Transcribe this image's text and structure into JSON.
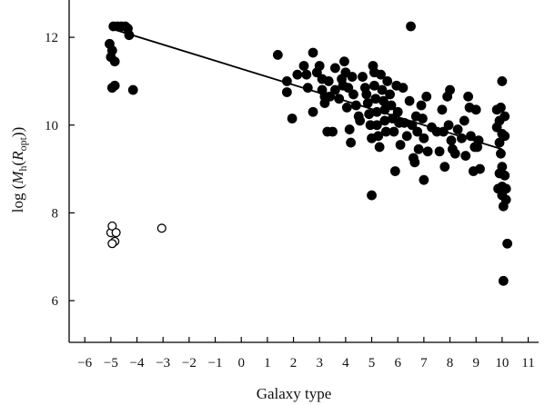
{
  "chart_data": {
    "type": "scatter",
    "title": "",
    "xlabel": "Galaxy type",
    "ylabel": {
      "prefix": "log (",
      "symbol": "M",
      "sub": "h",
      "open": "(",
      "symbol2": "R",
      "sub2": "opt",
      "close": "))"
    },
    "xlim": [
      -6.6,
      11.4
    ],
    "ylim": [
      5.05,
      12.85
    ],
    "xticks": [
      -6,
      -5,
      -4,
      -3,
      -2,
      -1,
      0,
      1,
      2,
      3,
      4,
      5,
      6,
      7,
      8,
      9,
      10,
      11
    ],
    "xtick_labels": [
      "−6",
      "−5",
      "−4",
      "−3",
      "−2",
      "−1",
      "0",
      "1",
      "2",
      "3",
      "4",
      "5",
      "6",
      "7",
      "8",
      "9",
      "10",
      "11"
    ],
    "yticks": [
      6,
      8,
      10,
      12
    ],
    "ytick_labels": [
      "6",
      "8",
      "10",
      "12"
    ],
    "grid": false,
    "series": [
      {
        "marker": "filled-circle",
        "color": "#000000",
        "points": [
          [
            -4.9,
            12.25
          ],
          [
            -4.75,
            12.25
          ],
          [
            -4.6,
            12.25
          ],
          [
            -4.45,
            12.25
          ],
          [
            -4.35,
            12.2
          ],
          [
            -4.3,
            12.05
          ],
          [
            -5.05,
            11.85
          ],
          [
            -4.95,
            11.7
          ],
          [
            -5.0,
            11.55
          ],
          [
            -4.85,
            11.45
          ],
          [
            -4.95,
            10.85
          ],
          [
            -4.85,
            10.9
          ],
          [
            -4.15,
            10.8
          ],
          [
            1.4,
            11.6
          ],
          [
            1.75,
            11.0
          ],
          [
            1.75,
            10.75
          ],
          [
            1.95,
            10.15
          ],
          [
            2.15,
            11.15
          ],
          [
            2.4,
            11.35
          ],
          [
            2.5,
            11.15
          ],
          [
            2.55,
            10.85
          ],
          [
            2.75,
            11.65
          ],
          [
            2.75,
            10.3
          ],
          [
            2.9,
            11.2
          ],
          [
            3.0,
            11.35
          ],
          [
            3.1,
            11.05
          ],
          [
            3.1,
            10.8
          ],
          [
            3.2,
            10.65
          ],
          [
            3.2,
            10.5
          ],
          [
            3.3,
            9.85
          ],
          [
            3.35,
            11.0
          ],
          [
            3.4,
            10.65
          ],
          [
            3.5,
            9.85
          ],
          [
            3.6,
            11.3
          ],
          [
            3.6,
            10.8
          ],
          [
            3.75,
            10.6
          ],
          [
            3.85,
            11.05
          ],
          [
            3.9,
            10.9
          ],
          [
            3.95,
            11.45
          ],
          [
            4.0,
            11.2
          ],
          [
            4.05,
            10.4
          ],
          [
            4.1,
            10.85
          ],
          [
            4.15,
            9.9
          ],
          [
            4.2,
            9.6
          ],
          [
            4.25,
            11.1
          ],
          [
            4.3,
            10.7
          ],
          [
            4.4,
            10.45
          ],
          [
            4.5,
            10.2
          ],
          [
            4.55,
            10.1
          ],
          [
            4.65,
            11.1
          ],
          [
            4.75,
            10.85
          ],
          [
            4.8,
            10.7
          ],
          [
            4.85,
            10.5
          ],
          [
            4.9,
            10.25
          ],
          [
            4.95,
            10.0
          ],
          [
            5.0,
            9.7
          ],
          [
            5.0,
            8.4
          ],
          [
            5.05,
            11.35
          ],
          [
            5.1,
            11.2
          ],
          [
            5.1,
            10.9
          ],
          [
            5.15,
            10.6
          ],
          [
            5.2,
            10.3
          ],
          [
            5.2,
            10.0
          ],
          [
            5.25,
            9.75
          ],
          [
            5.3,
            9.5
          ],
          [
            5.35,
            11.15
          ],
          [
            5.4,
            10.8
          ],
          [
            5.45,
            10.55
          ],
          [
            5.5,
            10.35
          ],
          [
            5.5,
            10.1
          ],
          [
            5.55,
            9.85
          ],
          [
            5.6,
            11.0
          ],
          [
            5.7,
            10.7
          ],
          [
            5.75,
            10.45
          ],
          [
            5.8,
            10.15
          ],
          [
            5.85,
            9.85
          ],
          [
            5.9,
            8.95
          ],
          [
            5.95,
            10.9
          ],
          [
            6.0,
            10.3
          ],
          [
            6.05,
            10.05
          ],
          [
            6.1,
            9.55
          ],
          [
            6.2,
            10.85
          ],
          [
            6.25,
            10.05
          ],
          [
            6.35,
            9.75
          ],
          [
            6.45,
            10.55
          ],
          [
            6.5,
            12.25
          ],
          [
            6.55,
            10.0
          ],
          [
            6.6,
            9.25
          ],
          [
            6.65,
            9.15
          ],
          [
            6.7,
            10.2
          ],
          [
            6.75,
            9.85
          ],
          [
            6.8,
            9.45
          ],
          [
            6.9,
            10.45
          ],
          [
            6.95,
            10.15
          ],
          [
            7.0,
            9.7
          ],
          [
            7.0,
            8.75
          ],
          [
            7.1,
            10.65
          ],
          [
            7.15,
            9.4
          ],
          [
            7.3,
            9.95
          ],
          [
            7.5,
            9.85
          ],
          [
            7.6,
            9.4
          ],
          [
            7.7,
            10.35
          ],
          [
            7.75,
            9.85
          ],
          [
            7.8,
            9.05
          ],
          [
            7.9,
            10.65
          ],
          [
            7.95,
            10.0
          ],
          [
            8.0,
            10.8
          ],
          [
            8.05,
            9.65
          ],
          [
            8.1,
            9.45
          ],
          [
            8.2,
            9.35
          ],
          [
            8.3,
            9.9
          ],
          [
            8.45,
            9.7
          ],
          [
            8.55,
            10.1
          ],
          [
            8.6,
            9.3
          ],
          [
            8.7,
            10.65
          ],
          [
            8.75,
            10.4
          ],
          [
            8.8,
            9.75
          ],
          [
            8.9,
            8.95
          ],
          [
            8.95,
            9.5
          ],
          [
            9.0,
            10.35
          ],
          [
            9.05,
            9.5
          ],
          [
            9.1,
            9.65
          ],
          [
            9.15,
            9.0
          ],
          [
            9.8,
            10.35
          ],
          [
            9.8,
            9.95
          ],
          [
            9.85,
            8.55
          ],
          [
            9.9,
            10.1
          ],
          [
            9.9,
            9.6
          ],
          [
            9.9,
            8.9
          ],
          [
            9.95,
            10.4
          ],
          [
            9.95,
            9.35
          ],
          [
            10.0,
            11.0
          ],
          [
            10.0,
            9.8
          ],
          [
            10.0,
            9.05
          ],
          [
            10.0,
            8.6
          ],
          [
            10.0,
            8.4
          ],
          [
            10.05,
            8.15
          ],
          [
            10.05,
            6.45
          ],
          [
            10.1,
            10.2
          ],
          [
            10.1,
            9.75
          ],
          [
            10.1,
            8.85
          ],
          [
            10.15,
            8.55
          ],
          [
            10.15,
            8.3
          ],
          [
            10.2,
            7.3
          ]
        ]
      },
      {
        "marker": "open-circle",
        "color": "#000000",
        "points": [
          [
            -5.0,
            7.55
          ],
          [
            -4.95,
            7.7
          ],
          [
            -4.85,
            7.35
          ],
          [
            -4.8,
            7.55
          ],
          [
            -4.95,
            7.3
          ],
          [
            -3.05,
            7.65
          ]
        ]
      }
    ],
    "fit_line": {
      "x": [
        -5.0,
        10.0
      ],
      "y": [
        12.2,
        9.45
      ]
    }
  }
}
